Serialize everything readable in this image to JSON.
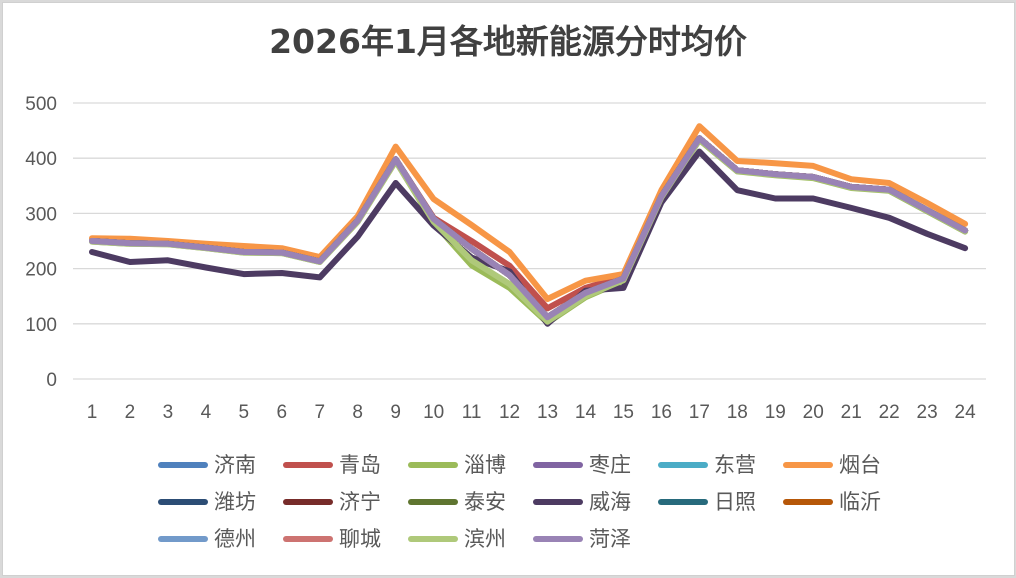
{
  "chart_data": {
    "type": "line",
    "title": "2026年1月各地新能源分时均价",
    "xlabel": "",
    "ylabel": "",
    "ylim": [
      0,
      500
    ],
    "yticks": [
      0,
      100,
      200,
      300,
      400,
      500
    ],
    "grid": true,
    "legend_position": "bottom",
    "x": [
      "1",
      "2",
      "3",
      "4",
      "5",
      "6",
      "7",
      "8",
      "9",
      "10",
      "11",
      "12",
      "13",
      "14",
      "15",
      "16",
      "17",
      "18",
      "19",
      "20",
      "21",
      "22",
      "23",
      "24"
    ],
    "series": [
      {
        "name": "济南",
        "color": "#4f81bd",
        "values": [
          250,
          246,
          245,
          238,
          230,
          229,
          213,
          287,
          398,
          290,
          236,
          188,
          112,
          156,
          182,
          331,
          436,
          378,
          371,
          366,
          348,
          343,
          306,
          269
        ]
      },
      {
        "name": "青岛",
        "color": "#c0504d",
        "values": [
          250,
          246,
          245,
          238,
          230,
          229,
          213,
          287,
          398,
          292,
          250,
          205,
          128,
          165,
          185,
          331,
          436,
          378,
          371,
          366,
          348,
          343,
          306,
          269
        ]
      },
      {
        "name": "淄博",
        "color": "#9bbb59",
        "values": [
          249,
          245,
          244,
          237,
          229,
          228,
          212,
          285,
          395,
          283,
          206,
          165,
          102,
          148,
          178,
          328,
          433,
          376,
          369,
          364,
          346,
          341,
          304,
          267
        ]
      },
      {
        "name": "枣庄",
        "color": "#8064a2",
        "values": [
          250,
          246,
          245,
          238,
          230,
          229,
          213,
          287,
          398,
          290,
          236,
          188,
          112,
          156,
          182,
          331,
          436,
          378,
          371,
          366,
          348,
          343,
          306,
          269
        ]
      },
      {
        "name": "东营",
        "color": "#4bacc6",
        "values": [
          250,
          246,
          245,
          238,
          230,
          229,
          213,
          287,
          398,
          290,
          236,
          188,
          112,
          156,
          182,
          331,
          436,
          378,
          371,
          366,
          348,
          343,
          306,
          269
        ]
      },
      {
        "name": "烟台",
        "color": "#f79646",
        "values": [
          255,
          254,
          250,
          245,
          241,
          237,
          221,
          295,
          421,
          326,
          279,
          230,
          145,
          178,
          190,
          342,
          458,
          395,
          391,
          386,
          362,
          355,
          319,
          281
        ]
      },
      {
        "name": "潍坊",
        "color": "#2c4d75",
        "values": [
          250,
          246,
          245,
          238,
          230,
          229,
          213,
          287,
          398,
          290,
          236,
          188,
          112,
          156,
          182,
          331,
          436,
          378,
          371,
          366,
          348,
          343,
          306,
          269
        ]
      },
      {
        "name": "济宁",
        "color": "#772c2a",
        "values": [
          250,
          246,
          245,
          238,
          230,
          229,
          213,
          287,
          398,
          290,
          236,
          188,
          112,
          156,
          182,
          331,
          436,
          378,
          371,
          366,
          348,
          343,
          306,
          269
        ]
      },
      {
        "name": "泰安",
        "color": "#5f7530",
        "values": [
          250,
          246,
          245,
          238,
          230,
          229,
          213,
          287,
          398,
          290,
          236,
          188,
          112,
          156,
          182,
          331,
          436,
          378,
          371,
          366,
          348,
          343,
          306,
          269
        ]
      },
      {
        "name": "威海",
        "color": "#4d3b62",
        "values": [
          230,
          212,
          215,
          202,
          190,
          192,
          184,
          258,
          355,
          278,
          220,
          195,
          100,
          160,
          165,
          320,
          412,
          342,
          327,
          327,
          310,
          292,
          263,
          237
        ]
      },
      {
        "name": "日照",
        "color": "#276a7c",
        "values": [
          250,
          246,
          245,
          238,
          230,
          229,
          213,
          287,
          398,
          290,
          236,
          188,
          112,
          156,
          182,
          331,
          436,
          378,
          371,
          366,
          348,
          343,
          306,
          269
        ]
      },
      {
        "name": "临沂",
        "color": "#b65708",
        "values": [
          250,
          246,
          245,
          238,
          230,
          229,
          213,
          287,
          398,
          290,
          236,
          188,
          112,
          156,
          182,
          331,
          436,
          378,
          371,
          366,
          348,
          343,
          306,
          269
        ]
      },
      {
        "name": "德州",
        "color": "#729aca",
        "values": [
          250,
          246,
          245,
          238,
          230,
          229,
          213,
          287,
          398,
          290,
          236,
          188,
          112,
          156,
          182,
          331,
          436,
          378,
          371,
          366,
          348,
          343,
          306,
          269
        ]
      },
      {
        "name": "聊城",
        "color": "#cd7371",
        "values": [
          250,
          246,
          245,
          238,
          230,
          229,
          213,
          287,
          398,
          290,
          236,
          188,
          112,
          156,
          182,
          331,
          436,
          378,
          371,
          366,
          348,
          343,
          306,
          269
        ]
      },
      {
        "name": "滨州",
        "color": "#afc97a",
        "values": [
          249,
          245,
          244,
          237,
          229,
          228,
          212,
          285,
          395,
          285,
          215,
          172,
          104,
          150,
          179,
          329,
          434,
          377,
          370,
          365,
          347,
          342,
          305,
          268
        ]
      },
      {
        "name": "菏泽",
        "color": "#9983b5",
        "values": [
          250,
          246,
          245,
          238,
          230,
          229,
          213,
          287,
          398,
          290,
          236,
          188,
          112,
          156,
          182,
          331,
          436,
          378,
          371,
          366,
          348,
          343,
          306,
          269
        ]
      }
    ]
  }
}
